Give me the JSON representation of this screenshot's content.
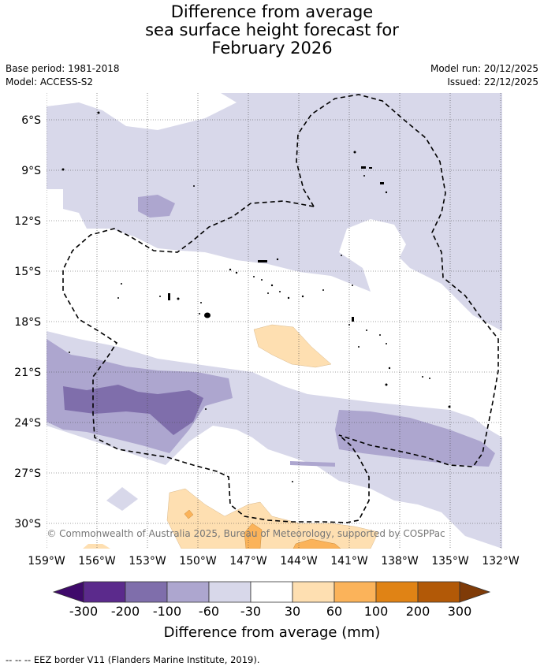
{
  "title_lines": [
    "Difference from average",
    "sea surface height forecast for",
    "February 2026"
  ],
  "meta": {
    "base_period": "Base period: 1981-2018",
    "model": "Model: ACCESS-S2",
    "model_run": "Model run: 20/12/2025",
    "issued": "Issued: 22/12/2025"
  },
  "map": {
    "lon_ticks": [
      "159°W",
      "156°W",
      "153°W",
      "150°W",
      "147°W",
      "144°W",
      "141°W",
      "138°W",
      "135°W",
      "132°W"
    ],
    "lat_ticks": [
      "6°S",
      "9°S",
      "12°S",
      "15°S",
      "18°S",
      "21°S",
      "24°S",
      "27°S",
      "30°S"
    ],
    "lon_range": [
      -159,
      -132
    ],
    "lat_range": [
      -4.5,
      -31.5
    ],
    "copyright": "© Commonwealth of Australia 2025, Bureau of Meteorology, supported by COSPPac",
    "land_color": "#000000",
    "eez_line_color": "#000000"
  },
  "colorbar": {
    "labels": [
      "-300",
      "-200",
      "-100",
      "-60",
      "-30",
      "30",
      "60",
      "100",
      "200",
      "300"
    ],
    "colors": [
      "#3f0a6b",
      "#5b2a8c",
      "#7f6eab",
      "#ada6cf",
      "#d8d8ea",
      "#ffffff",
      "#fedfb1",
      "#fbb35a",
      "#e08315",
      "#b25907",
      "#7f3b08"
    ],
    "title": "Difference from average (mm)"
  },
  "footnote": "--  --  -- EEZ border V11 (Flanders Marine Institute, 2019)."
}
